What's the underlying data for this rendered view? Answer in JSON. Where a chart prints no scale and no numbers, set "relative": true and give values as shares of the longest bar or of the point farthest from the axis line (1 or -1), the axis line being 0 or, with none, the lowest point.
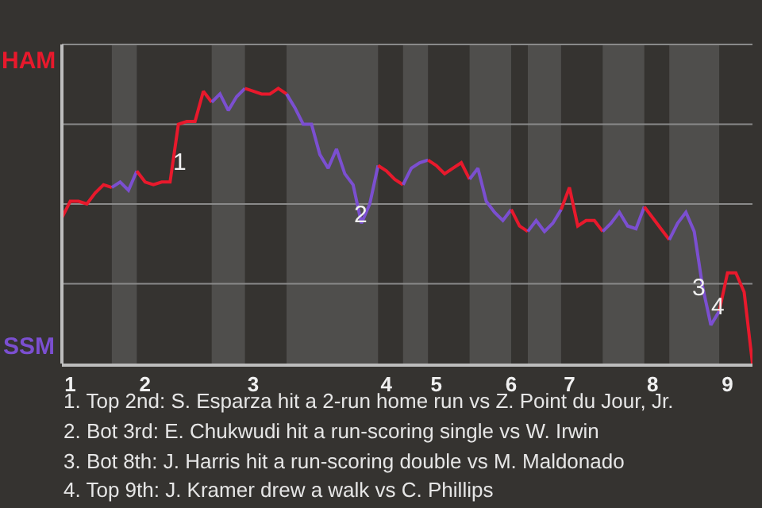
{
  "chart_data": {
    "type": "line",
    "relative": true,
    "categories": [
      null,
      "1",
      null,
      null,
      null,
      null,
      null,
      null,
      null,
      null,
      "2",
      null,
      null,
      null,
      null,
      null,
      null,
      null,
      null,
      null,
      null,
      null,
      null,
      "3",
      null,
      null,
      null,
      null,
      null,
      null,
      null,
      null,
      null,
      null,
      null,
      null,
      null,
      null,
      null,
      "4",
      null,
      null,
      null,
      null,
      null,
      "5",
      null,
      null,
      null,
      null,
      null,
      null,
      null,
      null,
      "6",
      null,
      null,
      null,
      null,
      null,
      null,
      "7",
      null,
      null,
      null,
      null,
      null,
      null,
      null,
      null,
      null,
      "8",
      null,
      null,
      null,
      null,
      null,
      null,
      null,
      null,
      "9",
      null,
      null,
      null
    ],
    "series": [
      {
        "color": "#e8192c",
        "values": [
          0.53,
          0.59,
          0.59,
          0.58,
          0.62,
          0.65,
          0.64,
          null,
          null,
          null,
          null,
          null,
          null,
          null,
          null,
          null,
          null,
          null,
          null,
          null,
          null,
          null,
          null,
          null,
          null,
          null,
          null,
          null,
          null,
          null,
          null,
          null,
          null,
          null,
          null,
          null,
          null,
          null,
          null,
          null,
          null,
          null,
          null,
          null,
          null,
          null,
          null,
          null,
          null,
          null,
          null,
          null,
          null,
          null,
          null,
          null,
          null,
          null,
          null,
          null,
          null,
          null,
          null,
          null,
          null,
          null,
          null,
          null,
          null,
          null,
          null,
          null,
          null,
          null,
          null,
          null,
          null,
          null,
          null,
          null,
          null,
          null,
          null,
          null
        ]
      },
      {
        "color": "#7b4fd0",
        "values": [
          null,
          null,
          null,
          null,
          null,
          null,
          0.64,
          0.66,
          0.63,
          0.7,
          null,
          null,
          null,
          null,
          null,
          null,
          null,
          null,
          null,
          null,
          null,
          null,
          null,
          null,
          null,
          null,
          null,
          null,
          null,
          null,
          null,
          null,
          null,
          null,
          null,
          null,
          null,
          null,
          null,
          null,
          null,
          null,
          null,
          null,
          null,
          null,
          null,
          null,
          null,
          null,
          null,
          null,
          null,
          null,
          null,
          null,
          null,
          null,
          null,
          null,
          null,
          null,
          null,
          null,
          null,
          null,
          null,
          null,
          null,
          null,
          null,
          null,
          null,
          null,
          null,
          null,
          null,
          null,
          null,
          null,
          null,
          null,
          null,
          null
        ]
      },
      {
        "color": "#e8192c",
        "values": [
          null,
          null,
          null,
          null,
          null,
          null,
          null,
          null,
          null,
          0.7,
          0.66,
          0.65,
          0.66,
          0.66,
          0.87,
          0.88,
          0.88,
          0.99,
          0.95,
          null,
          null,
          null,
          null,
          null,
          null,
          null,
          null,
          null,
          null,
          null,
          null,
          null,
          null,
          null,
          null,
          null,
          null,
          null,
          null,
          null,
          null,
          null,
          null,
          null,
          null,
          null,
          null,
          null,
          null,
          null,
          null,
          null,
          null,
          null,
          null,
          null,
          null,
          null,
          null,
          null,
          null,
          null,
          null,
          null,
          null,
          null,
          null,
          null,
          null,
          null,
          null,
          null,
          null,
          null,
          null,
          null,
          null,
          null,
          null,
          null,
          null,
          null,
          null,
          null
        ]
      },
      {
        "color": "#7b4fd0",
        "values": [
          null,
          null,
          null,
          null,
          null,
          null,
          null,
          null,
          null,
          null,
          null,
          null,
          null,
          null,
          null,
          null,
          null,
          null,
          0.95,
          0.98,
          0.92,
          0.97,
          1,
          null,
          null,
          null,
          null,
          null,
          null,
          null,
          null,
          null,
          null,
          null,
          null,
          null,
          null,
          null,
          null,
          null,
          null,
          null,
          null,
          null,
          null,
          null,
          null,
          null,
          null,
          null,
          null,
          null,
          null,
          null,
          null,
          null,
          null,
          null,
          null,
          null,
          null,
          null,
          null,
          null,
          null,
          null,
          null,
          null,
          null,
          null,
          null,
          null,
          null,
          null,
          null,
          null,
          null,
          null,
          null,
          null,
          null,
          null,
          null,
          null
        ]
      },
      {
        "color": "#e8192c",
        "values": [
          null,
          null,
          null,
          null,
          null,
          null,
          null,
          null,
          null,
          null,
          null,
          null,
          null,
          null,
          null,
          null,
          null,
          null,
          null,
          null,
          null,
          null,
          1,
          0.99,
          0.98,
          0.98,
          1,
          0.98,
          null,
          null,
          null,
          null,
          null,
          null,
          null,
          null,
          null,
          null,
          null,
          null,
          null,
          null,
          null,
          null,
          null,
          null,
          null,
          null,
          null,
          null,
          null,
          null,
          null,
          null,
          null,
          null,
          null,
          null,
          null,
          null,
          null,
          null,
          null,
          null,
          null,
          null,
          null,
          null,
          null,
          null,
          null,
          null,
          null,
          null,
          null,
          null,
          null,
          null,
          null,
          null,
          null,
          null,
          null,
          null
        ]
      },
      {
        "color": "#7b4fd0",
        "values": [
          null,
          null,
          null,
          null,
          null,
          null,
          null,
          null,
          null,
          null,
          null,
          null,
          null,
          null,
          null,
          null,
          null,
          null,
          null,
          null,
          null,
          null,
          null,
          null,
          null,
          null,
          null,
          0.98,
          0.93,
          0.87,
          0.87,
          0.76,
          0.71,
          0.78,
          0.69,
          0.65,
          0.51,
          0.58,
          0.72,
          null,
          null,
          null,
          null,
          null,
          null,
          null,
          null,
          null,
          null,
          null,
          null,
          null,
          null,
          null,
          null,
          null,
          null,
          null,
          null,
          null,
          null,
          null,
          null,
          null,
          null,
          null,
          null,
          null,
          null,
          null,
          null,
          null,
          null,
          null,
          null,
          null,
          null,
          null,
          null,
          null,
          null,
          null,
          null,
          null
        ]
      },
      {
        "color": "#e8192c",
        "values": [
          null,
          null,
          null,
          null,
          null,
          null,
          null,
          null,
          null,
          null,
          null,
          null,
          null,
          null,
          null,
          null,
          null,
          null,
          null,
          null,
          null,
          null,
          null,
          null,
          null,
          null,
          null,
          null,
          null,
          null,
          null,
          null,
          null,
          null,
          null,
          null,
          null,
          null,
          0.72,
          0.7,
          0.67,
          0.65,
          null,
          null,
          null,
          null,
          null,
          null,
          null,
          null,
          null,
          null,
          null,
          null,
          null,
          null,
          null,
          null,
          null,
          null,
          null,
          null,
          null,
          null,
          null,
          null,
          null,
          null,
          null,
          null,
          null,
          null,
          null,
          null,
          null,
          null,
          null,
          null,
          null,
          null,
          null,
          null,
          null,
          null
        ]
      },
      {
        "color": "#7b4fd0",
        "values": [
          null,
          null,
          null,
          null,
          null,
          null,
          null,
          null,
          null,
          null,
          null,
          null,
          null,
          null,
          null,
          null,
          null,
          null,
          null,
          null,
          null,
          null,
          null,
          null,
          null,
          null,
          null,
          null,
          null,
          null,
          null,
          null,
          null,
          null,
          null,
          null,
          null,
          null,
          null,
          null,
          null,
          0.65,
          0.71,
          0.73,
          0.74,
          null,
          null,
          null,
          null,
          null,
          null,
          null,
          null,
          null,
          null,
          null,
          null,
          null,
          null,
          null,
          null,
          null,
          null,
          null,
          null,
          null,
          null,
          null,
          null,
          null,
          null,
          null,
          null,
          null,
          null,
          null,
          null,
          null,
          null,
          null,
          null,
          null,
          null,
          null
        ]
      },
      {
        "color": "#e8192c",
        "values": [
          null,
          null,
          null,
          null,
          null,
          null,
          null,
          null,
          null,
          null,
          null,
          null,
          null,
          null,
          null,
          null,
          null,
          null,
          null,
          null,
          null,
          null,
          null,
          null,
          null,
          null,
          null,
          null,
          null,
          null,
          null,
          null,
          null,
          null,
          null,
          null,
          null,
          null,
          null,
          null,
          null,
          null,
          null,
          null,
          0.74,
          0.72,
          0.69,
          0.71,
          0.73,
          0.67,
          null,
          null,
          null,
          null,
          null,
          null,
          null,
          null,
          null,
          null,
          null,
          null,
          null,
          null,
          null,
          null,
          null,
          null,
          null,
          null,
          null,
          null,
          null,
          null,
          null,
          null,
          null,
          null,
          null,
          null,
          null,
          null,
          null,
          null
        ]
      },
      {
        "color": "#7b4fd0",
        "values": [
          null,
          null,
          null,
          null,
          null,
          null,
          null,
          null,
          null,
          null,
          null,
          null,
          null,
          null,
          null,
          null,
          null,
          null,
          null,
          null,
          null,
          null,
          null,
          null,
          null,
          null,
          null,
          null,
          null,
          null,
          null,
          null,
          null,
          null,
          null,
          null,
          null,
          null,
          null,
          null,
          null,
          null,
          null,
          null,
          null,
          null,
          null,
          null,
          null,
          0.67,
          0.71,
          0.59,
          0.55,
          0.52,
          0.56,
          null,
          null,
          null,
          null,
          null,
          null,
          null,
          null,
          null,
          null,
          null,
          null,
          null,
          null,
          null,
          null,
          null,
          null,
          null,
          null,
          null,
          null,
          null,
          null,
          null,
          null,
          null,
          null,
          null
        ]
      },
      {
        "color": "#e8192c",
        "values": [
          null,
          null,
          null,
          null,
          null,
          null,
          null,
          null,
          null,
          null,
          null,
          null,
          null,
          null,
          null,
          null,
          null,
          null,
          null,
          null,
          null,
          null,
          null,
          null,
          null,
          null,
          null,
          null,
          null,
          null,
          null,
          null,
          null,
          null,
          null,
          null,
          null,
          null,
          null,
          null,
          null,
          null,
          null,
          null,
          null,
          null,
          null,
          null,
          null,
          null,
          null,
          null,
          null,
          null,
          0.56,
          0.5,
          0.48,
          null,
          null,
          null,
          null,
          null,
          null,
          null,
          null,
          null,
          null,
          null,
          null,
          null,
          null,
          null,
          null,
          null,
          null,
          null,
          null,
          null,
          null,
          null,
          null,
          null,
          null,
          null
        ]
      },
      {
        "color": "#7b4fd0",
        "values": [
          null,
          null,
          null,
          null,
          null,
          null,
          null,
          null,
          null,
          null,
          null,
          null,
          null,
          null,
          null,
          null,
          null,
          null,
          null,
          null,
          null,
          null,
          null,
          null,
          null,
          null,
          null,
          null,
          null,
          null,
          null,
          null,
          null,
          null,
          null,
          null,
          null,
          null,
          null,
          null,
          null,
          null,
          null,
          null,
          null,
          null,
          null,
          null,
          null,
          null,
          null,
          null,
          null,
          null,
          null,
          null,
          0.48,
          0.52,
          0.48,
          0.51,
          0.56,
          null,
          null,
          null,
          null,
          null,
          null,
          null,
          null,
          null,
          null,
          null,
          null,
          null,
          null,
          null,
          null,
          null,
          null,
          null,
          null,
          null,
          null,
          null
        ]
      },
      {
        "color": "#e8192c",
        "values": [
          null,
          null,
          null,
          null,
          null,
          null,
          null,
          null,
          null,
          null,
          null,
          null,
          null,
          null,
          null,
          null,
          null,
          null,
          null,
          null,
          null,
          null,
          null,
          null,
          null,
          null,
          null,
          null,
          null,
          null,
          null,
          null,
          null,
          null,
          null,
          null,
          null,
          null,
          null,
          null,
          null,
          null,
          null,
          null,
          null,
          null,
          null,
          null,
          null,
          null,
          null,
          null,
          null,
          null,
          null,
          null,
          null,
          null,
          null,
          null,
          0.56,
          0.64,
          0.5,
          0.52,
          0.52,
          0.48,
          null,
          null,
          null,
          null,
          null,
          null,
          null,
          null,
          null,
          null,
          null,
          null,
          null,
          null,
          null,
          null,
          null,
          null
        ]
      },
      {
        "color": "#7b4fd0",
        "values": [
          null,
          null,
          null,
          null,
          null,
          null,
          null,
          null,
          null,
          null,
          null,
          null,
          null,
          null,
          null,
          null,
          null,
          null,
          null,
          null,
          null,
          null,
          null,
          null,
          null,
          null,
          null,
          null,
          null,
          null,
          null,
          null,
          null,
          null,
          null,
          null,
          null,
          null,
          null,
          null,
          null,
          null,
          null,
          null,
          null,
          null,
          null,
          null,
          null,
          null,
          null,
          null,
          null,
          null,
          null,
          null,
          null,
          null,
          null,
          null,
          null,
          null,
          null,
          null,
          null,
          0.48,
          0.51,
          0.55,
          0.5,
          0.49,
          0.57,
          null,
          null,
          null,
          null,
          null,
          null,
          null,
          null,
          null,
          null,
          null,
          null,
          null
        ]
      },
      {
        "color": "#e8192c",
        "values": [
          null,
          null,
          null,
          null,
          null,
          null,
          null,
          null,
          null,
          null,
          null,
          null,
          null,
          null,
          null,
          null,
          null,
          null,
          null,
          null,
          null,
          null,
          null,
          null,
          null,
          null,
          null,
          null,
          null,
          null,
          null,
          null,
          null,
          null,
          null,
          null,
          null,
          null,
          null,
          null,
          null,
          null,
          null,
          null,
          null,
          null,
          null,
          null,
          null,
          null,
          null,
          null,
          null,
          null,
          null,
          null,
          null,
          null,
          null,
          null,
          null,
          null,
          null,
          null,
          null,
          null,
          null,
          null,
          null,
          null,
          0.57,
          0.53,
          0.49,
          0.45,
          null,
          null,
          null,
          null,
          null,
          null,
          null,
          null,
          null,
          null
        ]
      },
      {
        "color": "#7b4fd0",
        "values": [
          null,
          null,
          null,
          null,
          null,
          null,
          null,
          null,
          null,
          null,
          null,
          null,
          null,
          null,
          null,
          null,
          null,
          null,
          null,
          null,
          null,
          null,
          null,
          null,
          null,
          null,
          null,
          null,
          null,
          null,
          null,
          null,
          null,
          null,
          null,
          null,
          null,
          null,
          null,
          null,
          null,
          null,
          null,
          null,
          null,
          null,
          null,
          null,
          null,
          null,
          null,
          null,
          null,
          null,
          null,
          null,
          null,
          null,
          null,
          null,
          null,
          null,
          null,
          null,
          null,
          null,
          null,
          null,
          null,
          null,
          null,
          null,
          null,
          0.45,
          0.51,
          0.55,
          0.48,
          0.28,
          0.14,
          0.19,
          null,
          null,
          null,
          null
        ]
      },
      {
        "color": "#e8192c",
        "values": [
          null,
          null,
          null,
          null,
          null,
          null,
          null,
          null,
          null,
          null,
          null,
          null,
          null,
          null,
          null,
          null,
          null,
          null,
          null,
          null,
          null,
          null,
          null,
          null,
          null,
          null,
          null,
          null,
          null,
          null,
          null,
          null,
          null,
          null,
          null,
          null,
          null,
          null,
          null,
          null,
          null,
          null,
          null,
          null,
          null,
          null,
          null,
          null,
          null,
          null,
          null,
          null,
          null,
          null,
          null,
          null,
          null,
          null,
          null,
          null,
          null,
          null,
          null,
          null,
          null,
          null,
          null,
          null,
          null,
          null,
          null,
          null,
          null,
          null,
          null,
          null,
          null,
          null,
          null,
          0.19,
          0.33,
          0.33,
          0.26,
          0
        ]
      }
    ],
    "grid": "y",
    "annotations": [
      "HAM",
      "SSM",
      "1",
      "2",
      "3",
      "4",
      "1. Top 2nd: S. Esparza hit a 2-run home run vs Z. Point du Jour, Jr.",
      "2. Bot 3rd: E. Chukwudi hit a run-scoring single vs W. Irwin",
      "3. Bot 8th: J. Harris hit a run-scoring double vs M. Maldonado",
      "4. Top 9th: J. Kramer drew a walk vs C. Phillips"
    ]
  }
}
